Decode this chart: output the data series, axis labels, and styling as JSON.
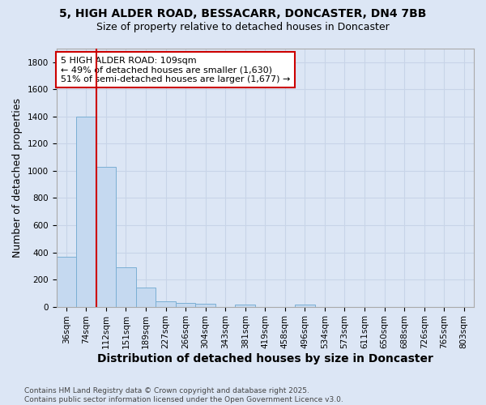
{
  "title_line1": "5, HIGH ALDER ROAD, BESSACARR, DONCASTER, DN4 7BB",
  "title_line2": "Size of property relative to detached houses in Doncaster",
  "xlabel": "Distribution of detached houses by size in Doncaster",
  "ylabel": "Number of detached properties",
  "categories": [
    "36sqm",
    "74sqm",
    "112sqm",
    "151sqm",
    "189sqm",
    "227sqm",
    "266sqm",
    "304sqm",
    "343sqm",
    "381sqm",
    "419sqm",
    "458sqm",
    "496sqm",
    "534sqm",
    "573sqm",
    "611sqm",
    "650sqm",
    "688sqm",
    "726sqm",
    "765sqm",
    "803sqm"
  ],
  "values": [
    370,
    1400,
    1030,
    290,
    140,
    40,
    30,
    20,
    0,
    15,
    0,
    0,
    15,
    0,
    0,
    0,
    0,
    0,
    0,
    0,
    0
  ],
  "bar_color": "#c5d9f0",
  "bar_edge_color": "#7bafd4",
  "red_line_index": 2,
  "red_line_color": "#cc0000",
  "annotation_text": "5 HIGH ALDER ROAD: 109sqm\n← 49% of detached houses are smaller (1,630)\n51% of semi-detached houses are larger (1,677) →",
  "annotation_box_color": "#ffffff",
  "annotation_box_edge": "#cc0000",
  "ylim": [
    0,
    1900
  ],
  "yticks": [
    0,
    200,
    400,
    600,
    800,
    1000,
    1200,
    1400,
    1600,
    1800
  ],
  "grid_color": "#c8d4e8",
  "background_color": "#dce6f5",
  "footnote": "Contains HM Land Registry data © Crown copyright and database right 2025.\nContains public sector information licensed under the Open Government Licence v3.0.",
  "title_fontsize": 10,
  "subtitle_fontsize": 9,
  "axis_label_fontsize": 9,
  "tick_fontsize": 7.5,
  "annotation_fontsize": 8,
  "footnote_fontsize": 6.5
}
